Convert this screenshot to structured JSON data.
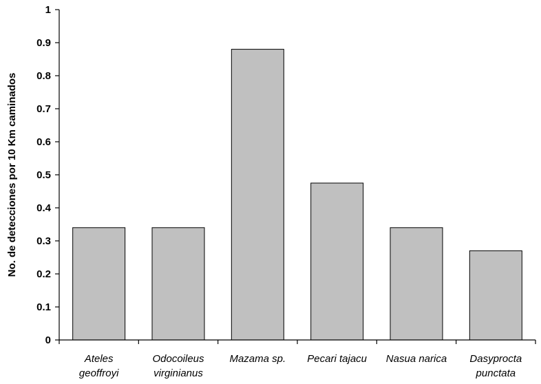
{
  "chart_data": {
    "type": "bar",
    "categories": [
      [
        "Ateles",
        "geoffroyi"
      ],
      [
        "Odocoileus",
        "virginianus"
      ],
      [
        "Mazama sp."
      ],
      [
        "Pecari tajacu"
      ],
      [
        "Nasua narica"
      ],
      [
        "Dasyprocta",
        "punctata"
      ]
    ],
    "values": [
      0.34,
      0.34,
      0.88,
      0.475,
      0.34,
      0.27
    ],
    "ylabel": "No. de detecciones por 10 Km caminados",
    "xlabel": "",
    "ylim": [
      0,
      1
    ],
    "yticks": [
      "0",
      "0.1",
      "0.2",
      "0.3",
      "0.4",
      "0.5",
      "0.6",
      "0.7",
      "0.8",
      "0.9",
      "1"
    ],
    "bar_color": "#C0C0C0",
    "bar_stroke": "#000000",
    "grid": false
  }
}
